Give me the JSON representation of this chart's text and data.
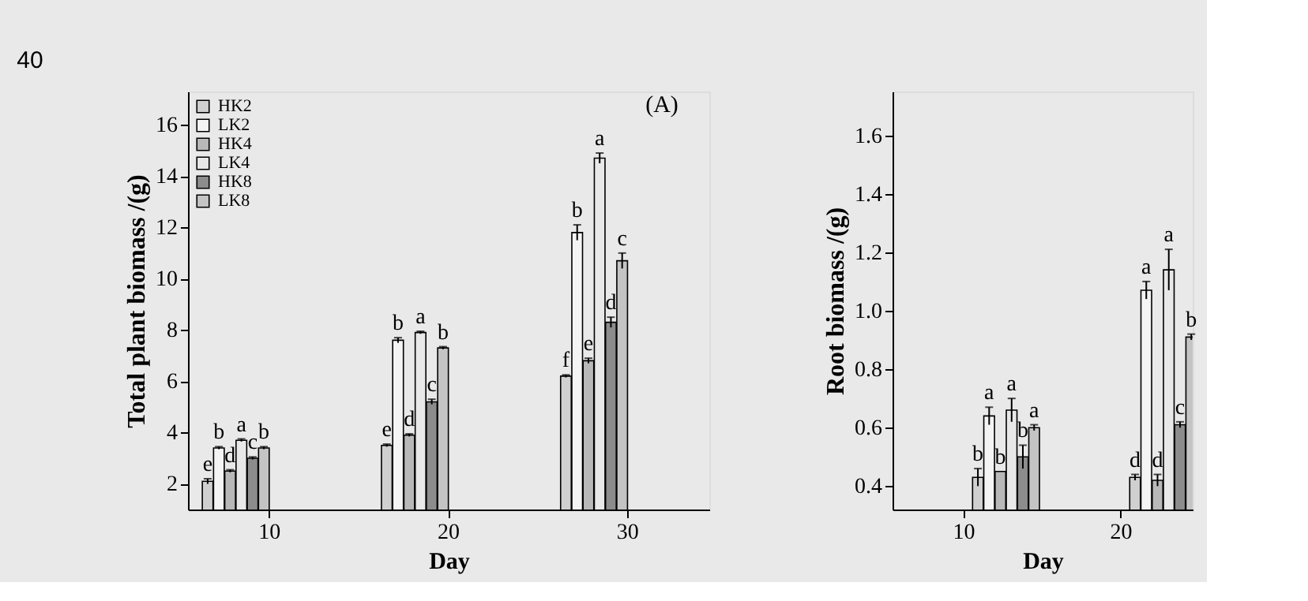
{
  "chart_data": [
    {
      "type": "bar",
      "categories": [
        "10",
        "20",
        "30"
      ],
      "xlabel": "Day",
      "ylabel": "Total plant biomass /(g)",
      "ylim": [
        1,
        17.3
      ],
      "yticks": [
        2,
        4,
        6,
        8,
        10,
        12,
        14,
        16
      ],
      "legend": "top left",
      "grid": false,
      "annotations": [
        "(A)",
        "40"
      ],
      "series": [
        {
          "name": "HK2",
          "color": "#d0d0d0",
          "values": [
            2.1,
            3.5,
            6.2
          ],
          "errors": [
            0.1,
            0.05,
            0.05
          ],
          "value_labels": [
            "e",
            "e",
            "f"
          ]
        },
        {
          "name": "LK2",
          "color": "#f4f4f4",
          "values": [
            3.4,
            7.6,
            11.8
          ],
          "errors": [
            0.05,
            0.1,
            0.3
          ],
          "value_labels": [
            "b",
            "b",
            "b"
          ]
        },
        {
          "name": "HK4",
          "color": "#b8b8b8",
          "values": [
            2.5,
            3.9,
            6.8
          ],
          "errors": [
            0.05,
            0.05,
            0.1
          ],
          "value_labels": [
            "d",
            "d",
            "e"
          ]
        },
        {
          "name": "LK4",
          "color": "#e8e8e8",
          "values": [
            3.7,
            7.9,
            14.7
          ],
          "errors": [
            0.05,
            0.05,
            0.2
          ],
          "value_labels": [
            "a",
            "a",
            "a"
          ]
        },
        {
          "name": "HK8",
          "color": "#8c8c8c",
          "values": [
            3.0,
            5.2,
            8.3
          ],
          "errors": [
            0.05,
            0.1,
            0.2
          ],
          "value_labels": [
            "c",
            "c",
            "d"
          ]
        },
        {
          "name": "LK8",
          "color": "#c4c4c4",
          "values": [
            3.4,
            7.3,
            10.7
          ],
          "errors": [
            0.05,
            0.05,
            0.3
          ],
          "value_labels": [
            "b",
            "b",
            "c"
          ]
        }
      ]
    },
    {
      "type": "bar",
      "categories": [
        "10",
        "20"
      ],
      "xlabel": "Day",
      "ylabel": "Root biomass /(g)",
      "ylim": [
        0.32,
        1.75
      ],
      "yticks": [
        0.4,
        0.6,
        0.8,
        {
          "value": 1,
          "label": "1.0"
        },
        1.2,
        1.4,
        1.6
      ],
      "grid": false,
      "series": [
        {
          "color": "#d0d0d0",
          "values": [
            0.43,
            0.43
          ],
          "errors": [
            0.03,
            0.01
          ],
          "value_labels": [
            "b",
            "d"
          ]
        },
        {
          "color": "#f4f4f4",
          "values": [
            0.64,
            1.07
          ],
          "errors": [
            0.03,
            0.03
          ],
          "value_labels": [
            "a",
            "a"
          ]
        },
        {
          "color": "#b8b8b8",
          "values": [
            0.45,
            0.42
          ],
          "errors": [
            null,
            0.02
          ],
          "value_labels": [
            "b",
            "d"
          ]
        },
        {
          "color": "#e8e8e8",
          "values": [
            0.66,
            1.14
          ],
          "errors": [
            0.04,
            0.07
          ],
          "value_labels": [
            "a",
            "a"
          ]
        },
        {
          "color": "#8c8c8c",
          "values": [
            0.5,
            0.61
          ],
          "errors": [
            0.04,
            0.01
          ],
          "value_labels": [
            "b",
            "c"
          ]
        },
        {
          "color": "#c4c4c4",
          "values": [
            0.6,
            0.91
          ],
          "errors": [
            0.01,
            0.01
          ],
          "value_labels": [
            "a",
            "b"
          ]
        }
      ]
    }
  ]
}
